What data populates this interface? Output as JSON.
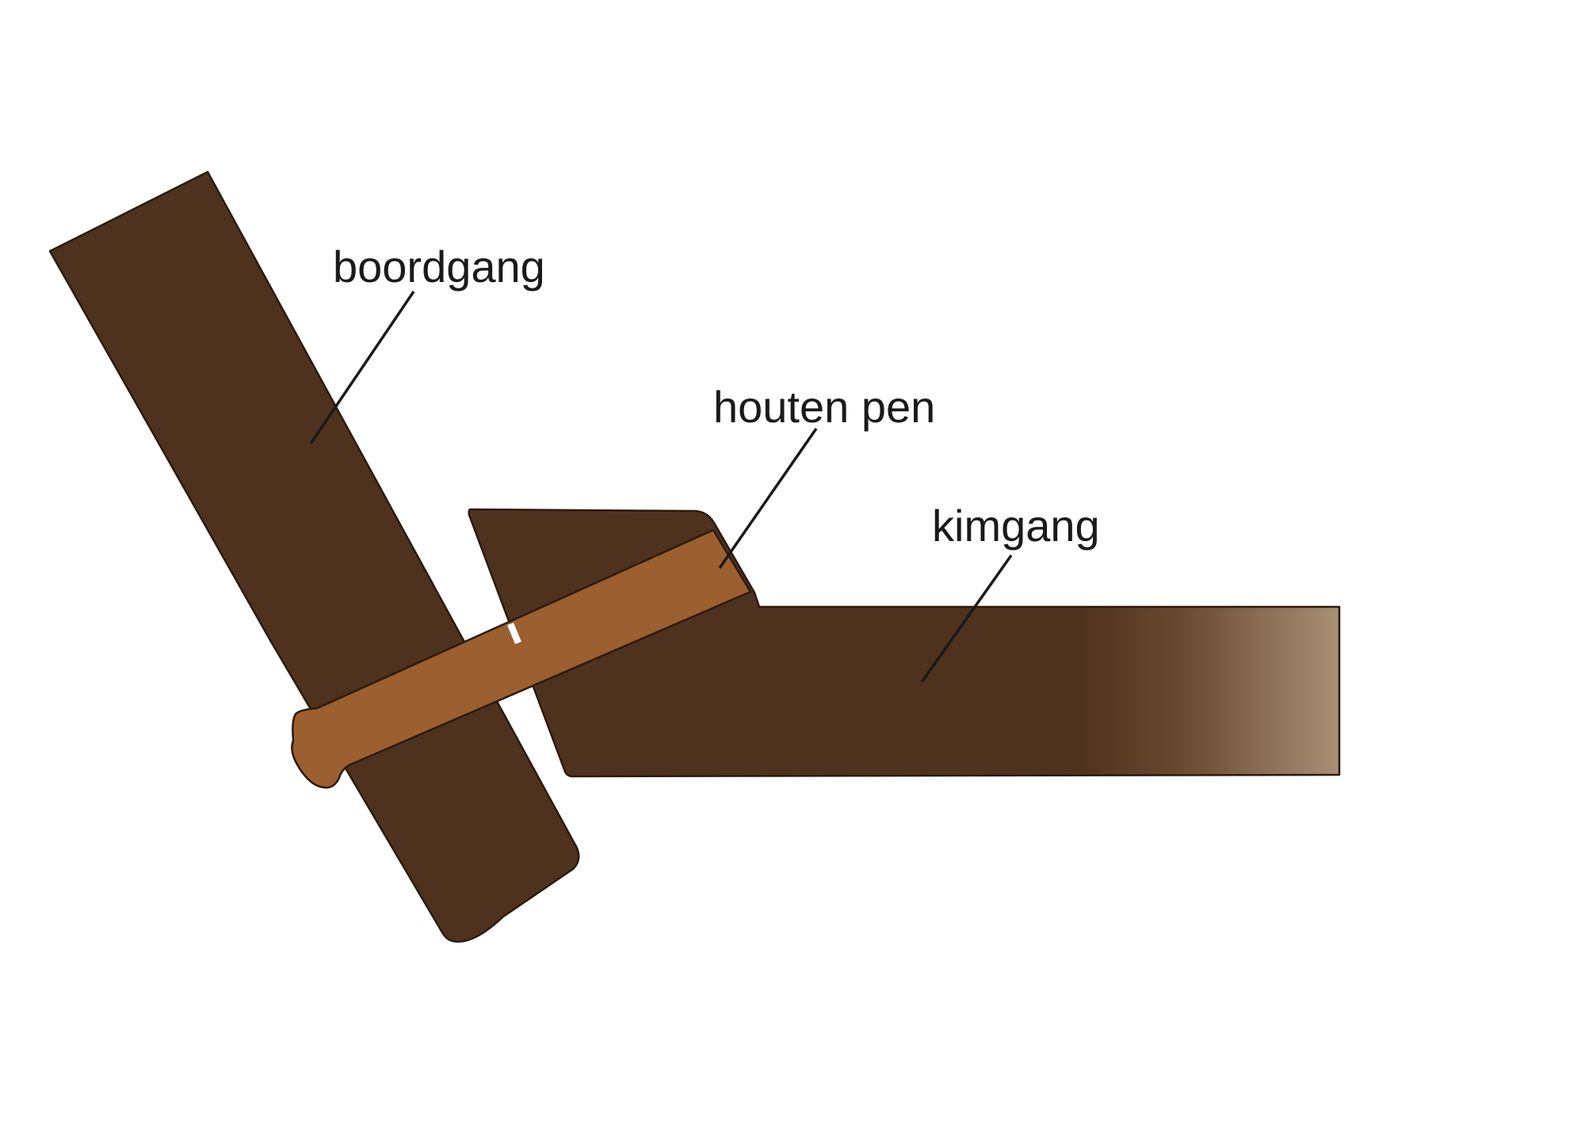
{
  "colors": {
    "plank": "#4f321e",
    "plank_outline": "#2b1a0e",
    "peg": "#9c5f2f",
    "peg_outline": "#2b1a0e",
    "fade_end": "#a88f76",
    "text": "#1a1a1a"
  },
  "labels": {
    "boordgang": "boordgang",
    "houten_pen": "houten pen",
    "kimgang": "kimgang"
  }
}
